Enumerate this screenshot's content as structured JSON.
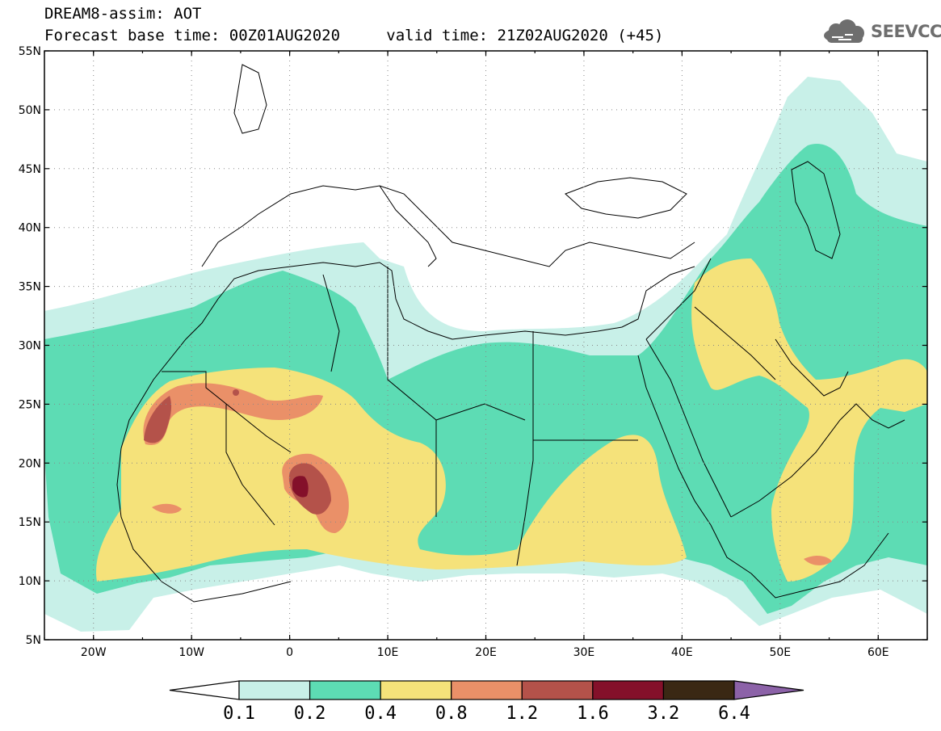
{
  "title": {
    "line1": "DREAM8-assim: AOT",
    "base_time": "Forecast base time: 00Z01AUG2020",
    "valid_time": "valid time: 21Z02AUG2020 (+45)"
  },
  "logo": {
    "text": "SEEVCCC",
    "icon": "cloud-icon"
  },
  "axes": {
    "lon_ticks": [
      "20W",
      "10W",
      "0",
      "10E",
      "20E",
      "30E",
      "40E",
      "50E",
      "60E"
    ],
    "lat_ticks": [
      "55N",
      "50N",
      "45N",
      "40N",
      "35N",
      "30N",
      "25N",
      "20N",
      "15N",
      "10N",
      "5N"
    ],
    "lon_range": [
      -25,
      65
    ],
    "lat_range": [
      5,
      55
    ]
  },
  "colorbar": {
    "labels": [
      "0.1",
      "0.2",
      "0.4",
      "0.8",
      "1.2",
      "1.6",
      "3.2",
      "6.4"
    ],
    "colors": [
      "#ffffff",
      "#c8f0e8",
      "#5ddcb4",
      "#f5e27a",
      "#ea9068",
      "#b4524a",
      "#84102a",
      "#3a2814",
      "#8c62a8"
    ]
  }
}
